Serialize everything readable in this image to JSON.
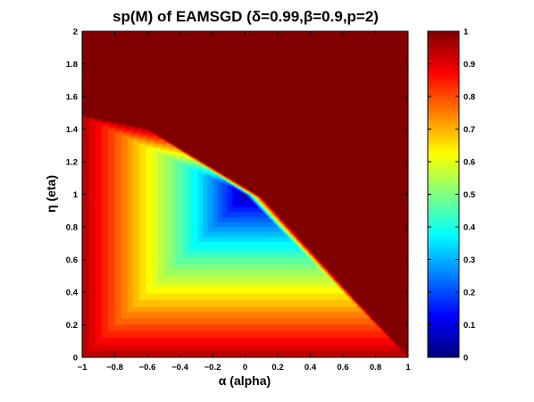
{
  "chart_data": {
    "type": "heatmap",
    "title": "sp(M) of EAMSGD (δ=0.99,β=0.9,p=2)",
    "xlabel": "α (alpha)",
    "ylabel": "η (eta)",
    "xlim": [
      -1,
      1
    ],
    "ylim": [
      0,
      2
    ],
    "x_ticks": [
      "−1",
      "−0.8",
      "−0.6",
      "−0.4",
      "−0.2",
      "0",
      "0.2",
      "0.4",
      "0.6",
      "0.8",
      "1"
    ],
    "y_ticks": [
      "0",
      "0.2",
      "0.4",
      "0.6",
      "0.8",
      "1",
      "1.2",
      "1.4",
      "1.6",
      "1.8",
      "2"
    ],
    "colorbar": {
      "colormap": "jet",
      "range": [
        0,
        1
      ],
      "ticks": [
        "0",
        "0.1",
        "0.2",
        "0.3",
        "0.4",
        "0.5",
        "0.6",
        "0.7",
        "0.8",
        "0.9",
        "1"
      ]
    },
    "stable_region_vertices": [
      [
        -1,
        1.48
      ],
      [
        -0.6,
        1.4
      ],
      [
        0.1,
        0.98
      ],
      [
        1,
        0
      ],
      [
        0.63,
        0
      ],
      [
        -1,
        0
      ]
    ],
    "min_point": [
      0,
      1
    ],
    "min_value": 0.02,
    "grid": false,
    "legend": "none"
  }
}
